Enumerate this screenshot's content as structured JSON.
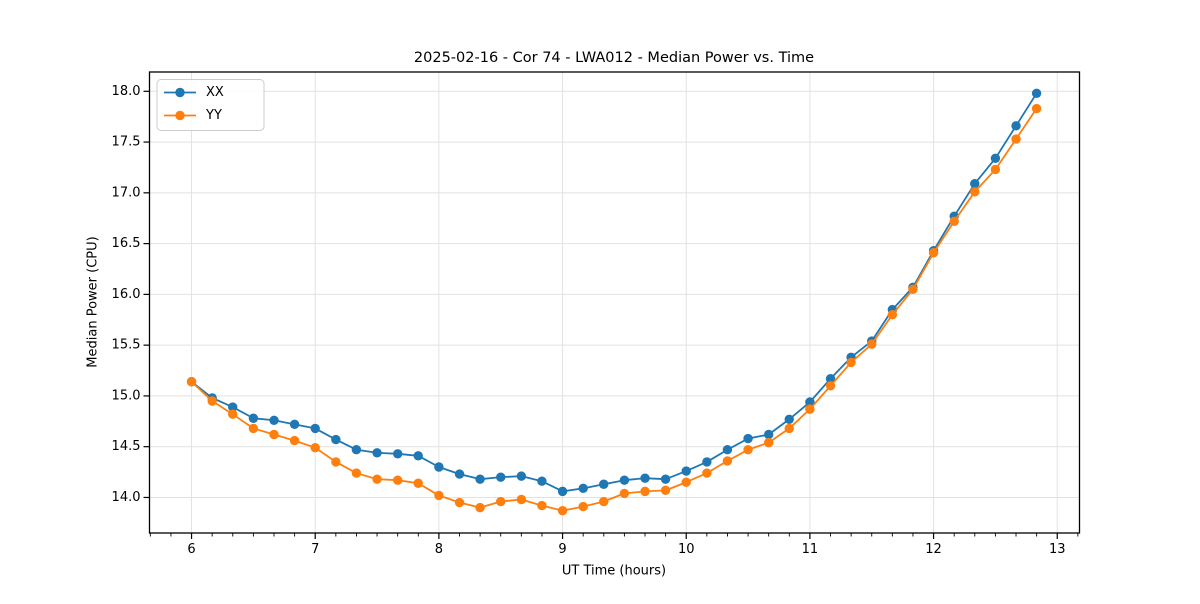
{
  "page": {
    "background": "#ffffff"
  },
  "chart_data": {
    "type": "line",
    "title": "2025-02-16 - Cor 74 - LWA012 - Median Power vs. Time",
    "xlabel": "UT Time (hours)",
    "ylabel": "Median Power (CPU)",
    "xlim": [
      5.66,
      13.18
    ],
    "ylim": [
      13.65,
      18.19
    ],
    "x_major_ticks": [
      6,
      7,
      8,
      9,
      10,
      11,
      12,
      13
    ],
    "x_minor_tick_step": 0.166667,
    "y_major_ticks": [
      14.0,
      14.5,
      15.0,
      15.5,
      16.0,
      16.5,
      17.0,
      17.5,
      18.0
    ],
    "grid": true,
    "grid_color": "#e2e2e2",
    "legend": {
      "position": "upper-left",
      "entries": [
        "XX",
        "YY"
      ]
    },
    "x": [
      6.0,
      6.167,
      6.333,
      6.5,
      6.667,
      6.833,
      7.0,
      7.167,
      7.333,
      7.5,
      7.667,
      7.833,
      8.0,
      8.167,
      8.333,
      8.5,
      8.667,
      8.833,
      9.0,
      9.167,
      9.333,
      9.5,
      9.667,
      9.833,
      10.0,
      10.167,
      10.333,
      10.5,
      10.667,
      10.833,
      11.0,
      11.167,
      11.333,
      11.5,
      11.667,
      11.833,
      12.0,
      12.167,
      12.333,
      12.5,
      12.667,
      12.833
    ],
    "series": [
      {
        "name": "XX",
        "color": "#1f77b4",
        "values": [
          15.14,
          14.98,
          14.89,
          14.78,
          14.76,
          14.72,
          14.68,
          14.57,
          14.47,
          14.44,
          14.43,
          14.41,
          14.3,
          14.23,
          14.18,
          14.2,
          14.21,
          14.16,
          14.06,
          14.09,
          14.13,
          14.17,
          14.19,
          14.18,
          14.26,
          14.35,
          14.47,
          14.58,
          14.62,
          14.77,
          14.94,
          15.17,
          15.38,
          15.54,
          15.85,
          16.07,
          16.43,
          16.77,
          17.09,
          17.34,
          17.66,
          17.98
        ]
      },
      {
        "name": "YY",
        "color": "#ff7f0e",
        "values": [
          15.14,
          14.95,
          14.82,
          14.68,
          14.62,
          14.56,
          14.49,
          14.35,
          14.24,
          14.18,
          14.17,
          14.14,
          14.02,
          13.95,
          13.9,
          13.96,
          13.98,
          13.92,
          13.87,
          13.91,
          13.96,
          14.04,
          14.06,
          14.07,
          14.15,
          14.24,
          14.36,
          14.47,
          14.54,
          14.68,
          14.87,
          15.1,
          15.33,
          15.51,
          15.8,
          16.05,
          16.41,
          16.72,
          17.01,
          17.23,
          17.53,
          17.83
        ]
      }
    ],
    "marker": "circle"
  }
}
